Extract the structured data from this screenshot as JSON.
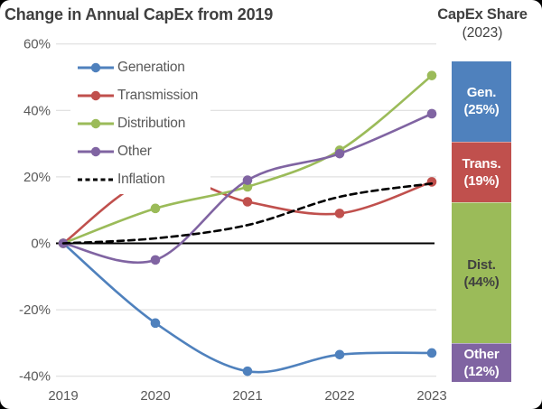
{
  "header": {
    "title": "Change in Annual CapEx from 2019"
  },
  "side_panel": {
    "title": "CapEx Share",
    "subtitle": "(2023)"
  },
  "chart_data": [
    {
      "type": "line",
      "title": "Change in Annual CapEx from 2019",
      "x": [
        2019,
        2020,
        2021,
        2022,
        2023
      ],
      "x_tick_labels": [
        "2019",
        "2020",
        "2021",
        "2022",
        "2023"
      ],
      "y_ticks": [
        {
          "label": "60%",
          "value": 60
        },
        {
          "label": "40%",
          "value": 40
        },
        {
          "label": "20%",
          "value": 20
        },
        {
          "label": "0%",
          "value": 0
        },
        {
          "label": "-20%",
          "value": -20
        },
        {
          "label": "-40%",
          "value": -40
        }
      ],
      "ylim": [
        -46,
        63
      ],
      "grid": true,
      "grid_color": "#d9d9d9",
      "zero_axis_color": "#000000",
      "axis_text_color": "#595959",
      "legend_position": "top-left-overlay",
      "series": [
        {
          "name": "Generation",
          "color": "#4f81bd",
          "style": "solid",
          "markers": true,
          "values": [
            0,
            -24,
            -38.5,
            -33.5,
            -33
          ]
        },
        {
          "name": "Transmission",
          "color": "#c0504d",
          "style": "solid",
          "markers": true,
          "values": [
            0,
            20,
            12.5,
            9,
            18.5
          ]
        },
        {
          "name": "Distribution",
          "color": "#9bbb59",
          "style": "solid",
          "markers": true,
          "values": [
            0,
            10.5,
            17,
            28,
            50.5
          ]
        },
        {
          "name": "Other",
          "color": "#8064a2",
          "style": "solid",
          "markers": true,
          "values": [
            0,
            -5,
            19,
            27,
            39
          ]
        },
        {
          "name": "Inflation",
          "color": "#000000",
          "style": "dashed",
          "markers": false,
          "values": [
            0,
            1.5,
            5.5,
            14,
            18
          ]
        }
      ]
    },
    {
      "type": "bar",
      "stacked": true,
      "title": "CapEx Share",
      "subtitle": "(2023)",
      "segments": [
        {
          "label": "Gen.",
          "share_label": "(25%)",
          "value": 25,
          "color": "#4f81bd",
          "text_color": "#ffffff"
        },
        {
          "label": "Trans.",
          "share_label": "(19%)",
          "value": 19,
          "color": "#c0504d",
          "text_color": "#ffffff"
        },
        {
          "label": "Dist.",
          "share_label": "(44%)",
          "value": 44,
          "color": "#9bbb59",
          "text_color": "#404040"
        },
        {
          "label": "Other",
          "share_label": "(12%)",
          "value": 12,
          "color": "#8064a2",
          "text_color": "#ffffff"
        }
      ]
    }
  ]
}
